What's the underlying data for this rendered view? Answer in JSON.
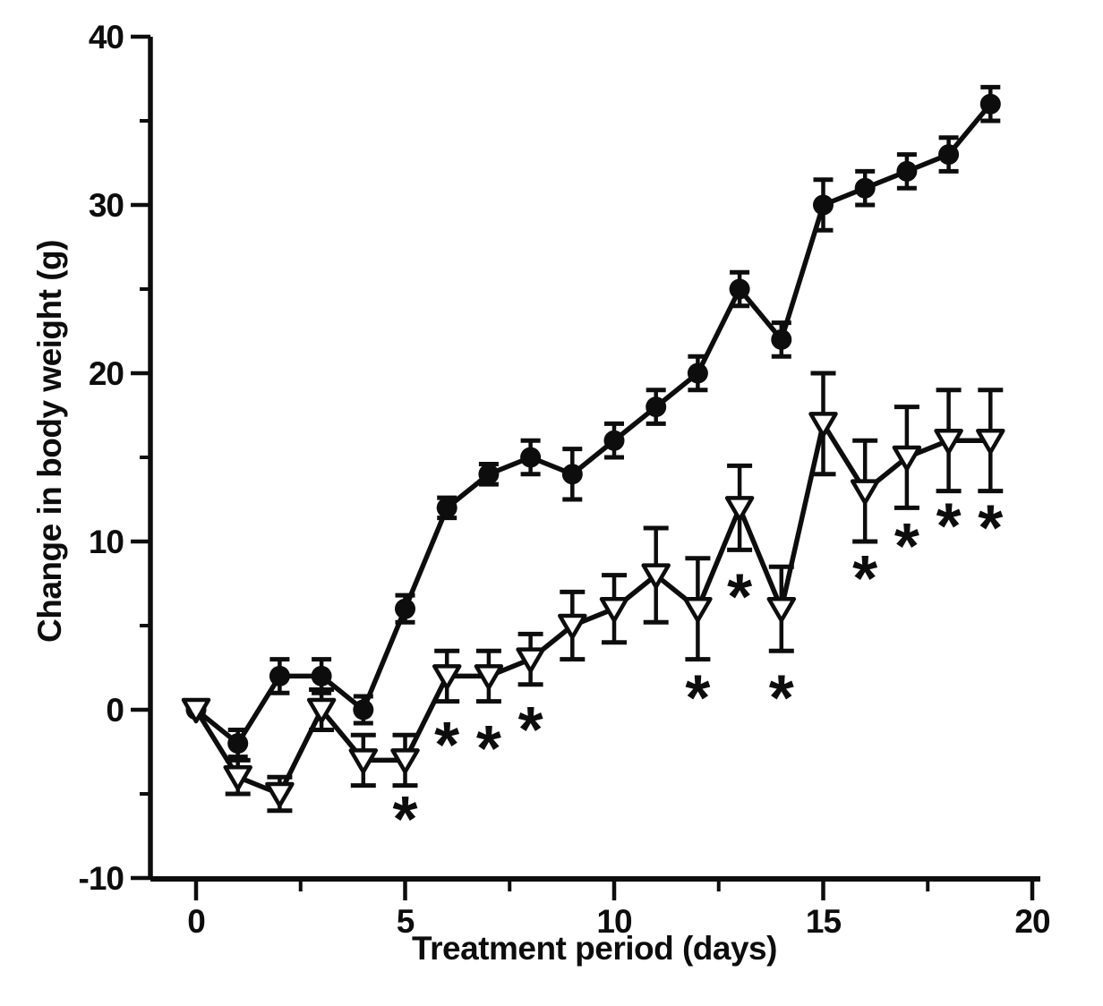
{
  "chart_data": {
    "type": "line",
    "title": "",
    "xlabel": "Treatment period (days)",
    "ylabel": "Change in body weight (g)",
    "xlim": [
      0,
      20
    ],
    "ylim": [
      -10,
      40
    ],
    "grid": false,
    "legend": "none",
    "x_major_ticks": [
      0,
      5,
      10,
      15,
      20
    ],
    "x_minor_ticks": [
      2.5,
      7.5,
      12.5,
      17.5
    ],
    "y_major_ticks": [
      -10,
      0,
      10,
      20,
      30,
      40
    ],
    "y_minor_ticks": [
      -5,
      5,
      15,
      25,
      35
    ],
    "x": [
      0,
      1,
      2,
      3,
      4,
      5,
      6,
      7,
      8,
      9,
      10,
      11,
      12,
      13,
      14,
      15,
      16,
      17,
      18,
      19
    ],
    "series": [
      {
        "name": "control-filled-circle",
        "marker": "filled-circle",
        "values": [
          0,
          -2,
          2,
          2,
          0,
          6,
          12,
          14,
          15,
          14,
          16,
          18,
          20,
          25,
          22,
          30,
          31,
          32,
          33,
          36
        ],
        "errors": [
          0,
          0.8,
          1,
          1,
          0.8,
          0.8,
          0.6,
          0.6,
          1,
          1.5,
          1,
          1,
          1,
          1,
          1,
          1.5,
          1,
          1,
          1,
          1
        ]
      },
      {
        "name": "treated-open-triangle",
        "marker": "open-triangle",
        "values": [
          0,
          -4,
          -5,
          0,
          -3,
          -3,
          2,
          2,
          3,
          5,
          6,
          8,
          6,
          12,
          6,
          17,
          13,
          15,
          16,
          16
        ],
        "errors": [
          0,
          1,
          1,
          1.2,
          1.5,
          1.5,
          1.5,
          1.5,
          1.5,
          2,
          2,
          2.8,
          3,
          2.5,
          2.5,
          3,
          3,
          3,
          3,
          3
        ]
      }
    ],
    "day0_overlap_marker": "open-ring",
    "significance_asterisks": [
      {
        "x": 5,
        "y": -6.0
      },
      {
        "x": 6,
        "y": -1.6
      },
      {
        "x": 7,
        "y": -1.8
      },
      {
        "x": 8,
        "y": -0.7
      },
      {
        "x": 12,
        "y": 1.2
      },
      {
        "x": 13,
        "y": 7.2
      },
      {
        "x": 14,
        "y": 1.2
      },
      {
        "x": 16,
        "y": 8.3
      },
      {
        "x": 17,
        "y": 10.2
      },
      {
        "x": 18,
        "y": 11.4
      },
      {
        "x": 19,
        "y": 11.3
      }
    ],
    "asterisk_glyph": "*",
    "colors": {
      "ink": "#0d0d0d",
      "background": "#ffffff"
    }
  }
}
